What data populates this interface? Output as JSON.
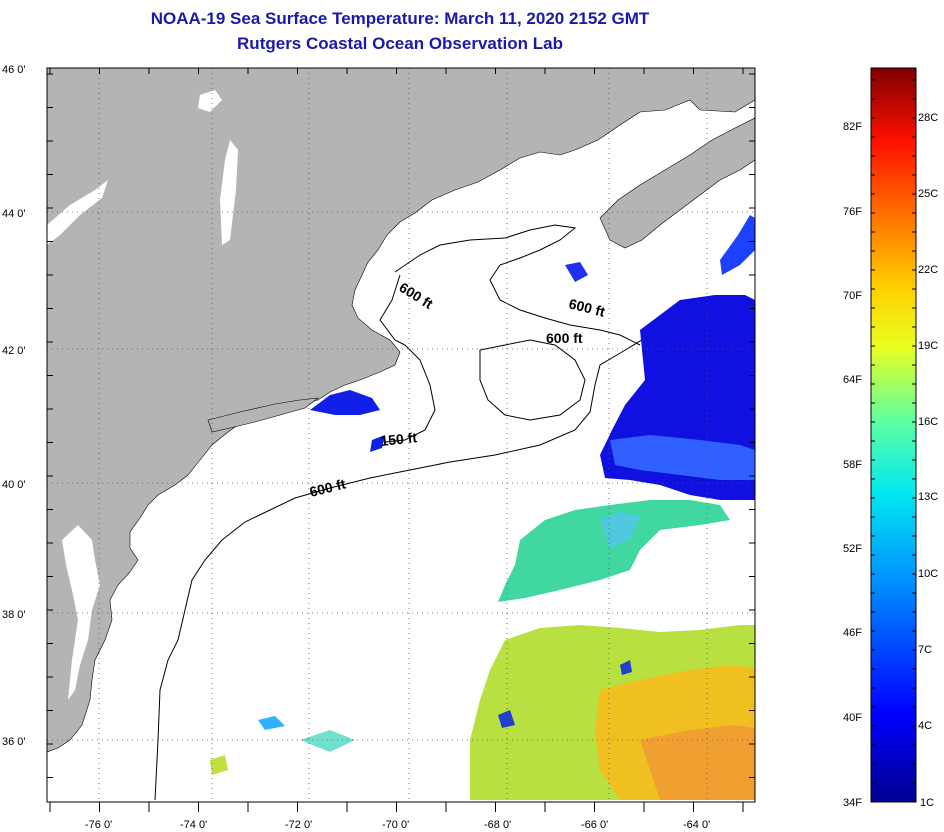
{
  "header": {
    "title": "NOAA-19 Sea Surface Temperature:  March 11, 2020 2152 GMT",
    "subtitle": "Rutgers Coastal Ocean Observation Lab"
  },
  "map": {
    "lat_labels": [
      "46 0'",
      "44 0'",
      "42 0'",
      "40 0'",
      "38 0'",
      "36 0'"
    ],
    "lon_labels": [
      "-76 0'",
      "-74 0'",
      "-72 0'",
      "-70 0'",
      "-68 0'",
      "-66 0'",
      "-64 0'"
    ],
    "contour_labels": [
      "600 ft",
      "600 ft",
      "600 ft",
      "150 ft",
      "600 ft"
    ],
    "land_color": "#b4b4b4",
    "ocean_color": "#ffffff"
  },
  "colorbar": {
    "fahrenheit_labels": [
      "82F",
      "76F",
      "70F",
      "64F",
      "58F",
      "52F",
      "46F",
      "40F",
      "34F"
    ],
    "celsius_labels": [
      "28C",
      "25C",
      "22C",
      "19C",
      "16C",
      "13C",
      "10C",
      "7C",
      "4C",
      "1C"
    ]
  }
}
